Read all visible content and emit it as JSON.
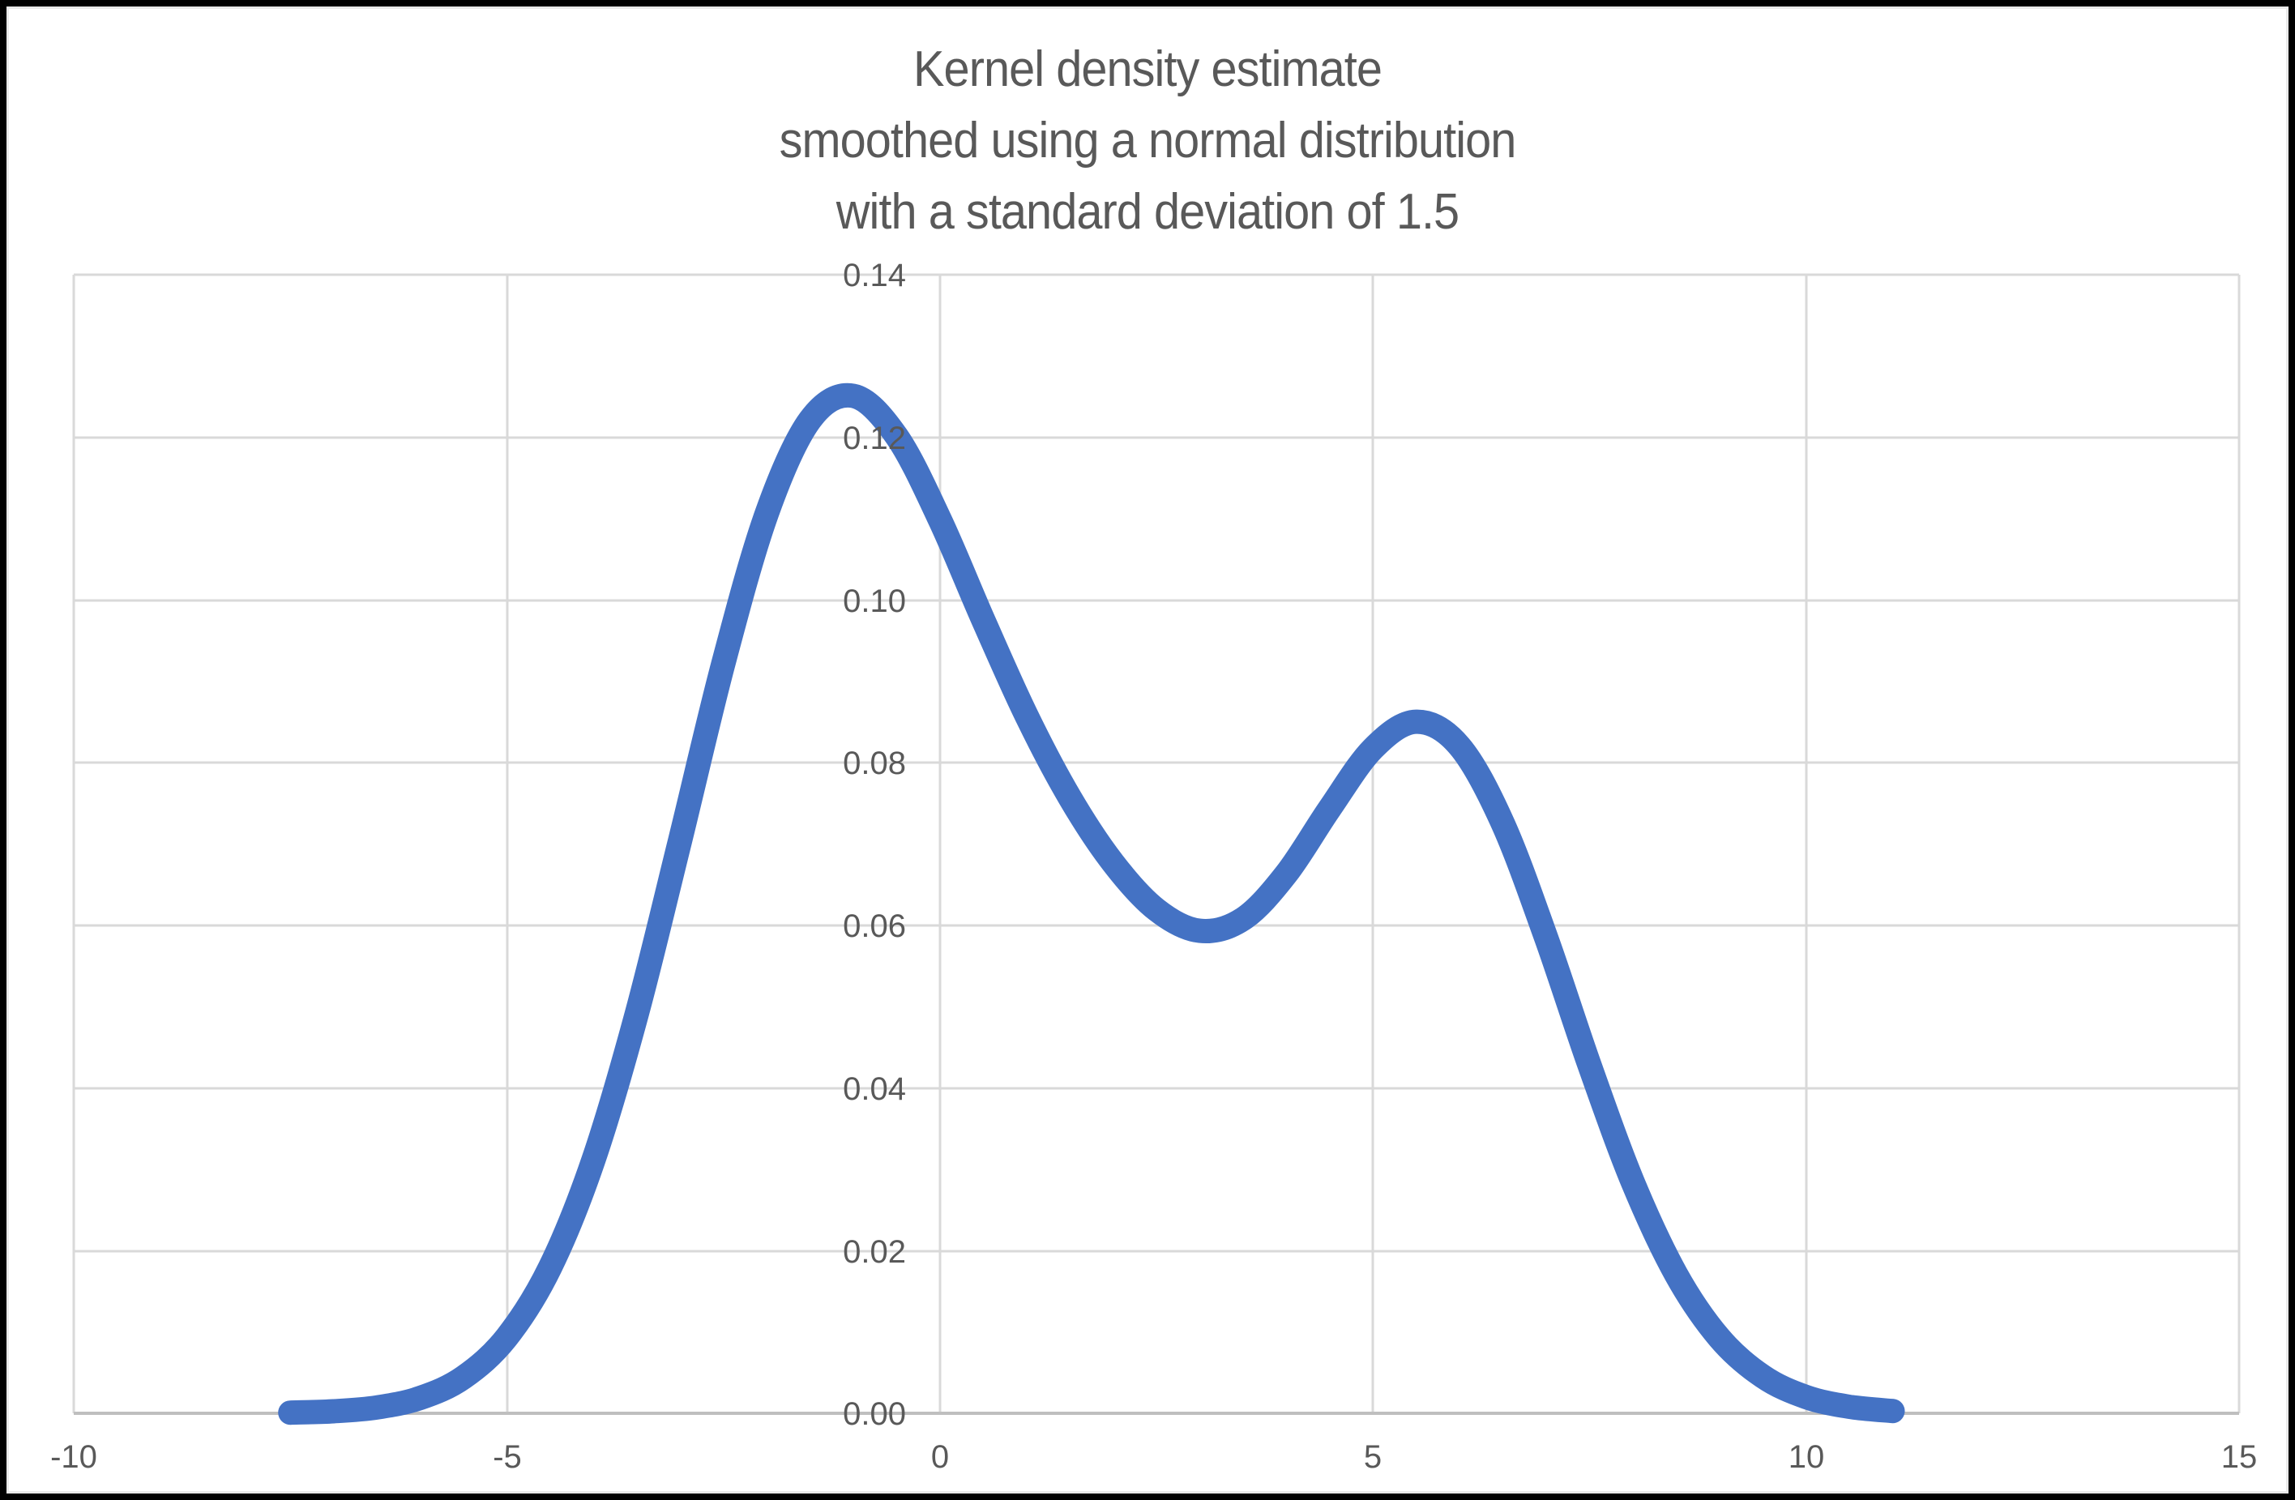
{
  "title": {
    "line1": "Kernel density estimate",
    "line2": "smoothed using a normal distribution",
    "line3": "with a standard deviation of 1.5"
  },
  "colors": {
    "curve": "#4472C4",
    "gridline": "#D9D9D9",
    "axis_line": "#BFBFBF",
    "text": "#595959",
    "frame_border": "#000000",
    "background": "#FFFFFF"
  },
  "chart_data": {
    "type": "line",
    "title": "Kernel density estimate smoothed using a normal distribution with a standard deviation of 1.5",
    "xlabel": "",
    "ylabel": "",
    "xlim": [
      -10,
      15
    ],
    "ylim": [
      0,
      0.14
    ],
    "grid": true,
    "legend": false,
    "x_tick_values": [
      -10,
      -5,
      0,
      5,
      10,
      15
    ],
    "x_tick_labels": [
      "-10",
      "-5",
      "0",
      "5",
      "10",
      "15"
    ],
    "y_tick_values": [
      0,
      0.02,
      0.04,
      0.06,
      0.08,
      0.1,
      0.12,
      0.14
    ],
    "y_tick_labels": [
      "0.00",
      "0.02",
      "0.04",
      "0.06",
      "0.08",
      "0.10",
      "0.12",
      "0.14"
    ],
    "features": {
      "left_peak": {
        "x": -1.05,
        "y": 0.125
      },
      "valley": {
        "x": 3.0,
        "y": 0.059
      },
      "right_peak": {
        "x": 5.5,
        "y": 0.085
      },
      "curve_x_start": -7.5,
      "curve_x_end": 11
    },
    "series": [
      {
        "name": "Kernel density estimate",
        "points": [
          [
            -7.5,
            8e-05
          ],
          [
            -7.0,
            0.00025
          ],
          [
            -6.5,
            0.00072
          ],
          [
            -6.0,
            0.00188
          ],
          [
            -5.5,
            0.00441
          ],
          [
            -5.0,
            0.00936
          ],
          [
            -4.5,
            0.01794
          ],
          [
            -4.0,
            0.03115
          ],
          [
            -3.5,
            0.04909
          ],
          [
            -3.0,
            0.07043
          ],
          [
            -2.5,
            0.0922
          ],
          [
            -2.0,
            0.11059
          ],
          [
            -1.5,
            0.12213
          ],
          [
            -1.0,
            0.1251
          ],
          [
            -0.5,
            0.12014
          ],
          [
            0.0,
            0.10988
          ],
          [
            0.5,
            0.09757
          ],
          [
            1.0,
            0.08578
          ],
          [
            1.5,
            0.07572
          ],
          [
            2.0,
            0.06767
          ],
          [
            2.5,
            0.06193
          ],
          [
            3.0,
            0.05933
          ],
          [
            3.5,
            0.06078
          ],
          [
            4.0,
            0.06633
          ],
          [
            4.5,
            0.07435
          ],
          [
            5.0,
            0.08173
          ],
          [
            5.5,
            0.08504
          ],
          [
            6.0,
            0.08202
          ],
          [
            6.5,
            0.07252
          ],
          [
            7.0,
            0.05846
          ],
          [
            7.5,
            0.04282
          ],
          [
            8.0,
            0.02843
          ],
          [
            8.5,
            0.01708
          ],
          [
            9.0,
            0.00927
          ],
          [
            9.5,
            0.00454
          ],
          [
            10.0,
            0.002
          ],
          [
            10.5,
            0.0008
          ],
          [
            11.0,
            0.00028
          ]
        ]
      }
    ]
  }
}
